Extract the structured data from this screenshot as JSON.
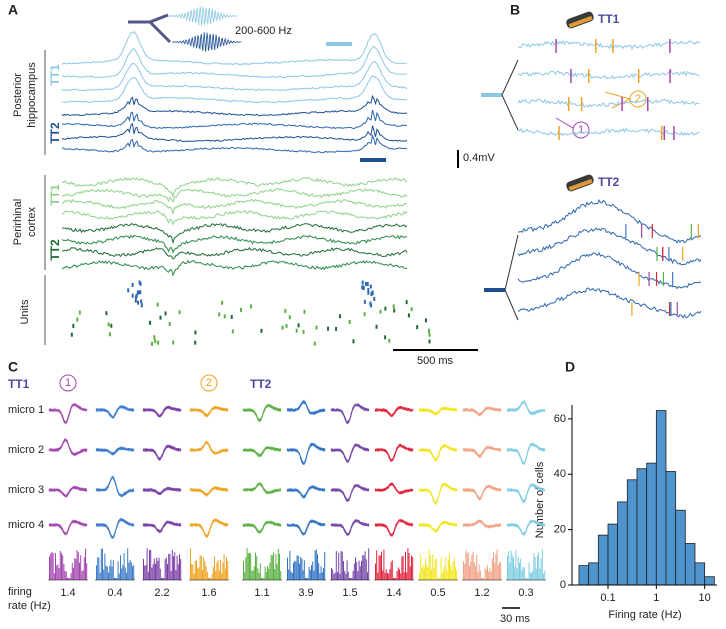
{
  "panel_a": {
    "label": "A",
    "region_1": {
      "name_lines": [
        "Posterior",
        "hippocampus"
      ],
      "tetrodes": [
        "TT1",
        "TT2"
      ]
    },
    "filter_label": "200-600 Hz",
    "amplitude_scale": "0.4mV",
    "region_2": {
      "name_lines": [
        "Perirhinal",
        "cortex"
      ],
      "tetrodes": [
        "TT1",
        "TT2"
      ]
    },
    "units_label": "Units",
    "time_scale": "500 ms"
  },
  "panel_b": {
    "label": "B",
    "tetrodes": [
      "TT1",
      "TT2"
    ],
    "markers": [
      "1",
      "2"
    ]
  },
  "panel_c": {
    "label": "C",
    "channels": [
      "micro 1",
      "micro 2",
      "micro 3",
      "micro 4"
    ],
    "rate_label_lines": [
      "firing",
      "rate (Hz)"
    ],
    "time_scale": "30 ms",
    "tetrodes": [
      {
        "name": "TT1",
        "units": [
          {
            "color": "#a545b0",
            "marker": "1",
            "rate": 1.4
          },
          {
            "color": "#3d7cc9",
            "rate": 0.4
          },
          {
            "color": "#7a3fa6",
            "rate": 2.2
          },
          {
            "color": "#efa321",
            "marker": "2",
            "rate": 1.6
          }
        ]
      },
      {
        "name": "TT2",
        "units": [
          {
            "color": "#5bb043",
            "rate": 1.1
          },
          {
            "color": "#2f73c4",
            "rate": 3.9
          },
          {
            "color": "#7547a8",
            "rate": 1.5
          },
          {
            "color": "#e2243f",
            "rate": 1.4
          },
          {
            "color": "#f2e51f",
            "rate": 0.5
          },
          {
            "color": "#f2a285",
            "rate": 1.2
          },
          {
            "color": "#7fcde3",
            "rate": 0.3
          }
        ]
      }
    ]
  },
  "chart_data": {
    "type": "histogram",
    "label": "D",
    "x_label": "Firing rate (Hz)",
    "y_label": "Number of cells",
    "bins": [
      0.0251,
      0.0398,
      0.0631,
      0.1,
      0.158,
      0.251,
      0.398,
      0.631,
      1,
      1.585,
      2.512,
      3.981,
      6.31,
      10,
      15.85
    ],
    "values": [
      7,
      8,
      18,
      22,
      30,
      38,
      42,
      44,
      63,
      41,
      27,
      15,
      8,
      3
    ],
    "color": "#4f93cf",
    "log_x": true,
    "xlim": [
      0.018,
      18
    ],
    "xticks": [
      0.1,
      1,
      10
    ],
    "ylim": [
      0,
      65
    ],
    "yticks": [
      0,
      20,
      40,
      60
    ]
  }
}
